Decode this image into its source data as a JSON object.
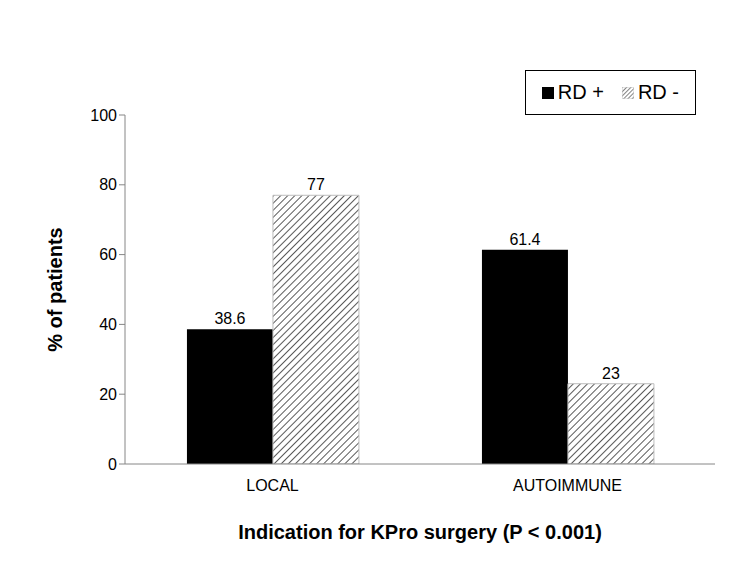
{
  "chart_data": {
    "type": "bar",
    "x_label": "Indication for KPro surgery (P < 0.001)",
    "y_label": "% of patients",
    "categories": [
      "LOCAL",
      "AUTOIMMUNE"
    ],
    "series": [
      {
        "name": "RD +",
        "color": "#000000",
        "values": [
          38.6,
          61.4
        ]
      },
      {
        "name": "RD -",
        "color": "#595959",
        "values": [
          77,
          23
        ]
      }
    ],
    "ylim": [
      0,
      100
    ],
    "yticks": [
      0,
      20,
      40,
      60,
      80,
      100
    ],
    "grid": false,
    "legend": "upper right",
    "data_labels": true
  }
}
